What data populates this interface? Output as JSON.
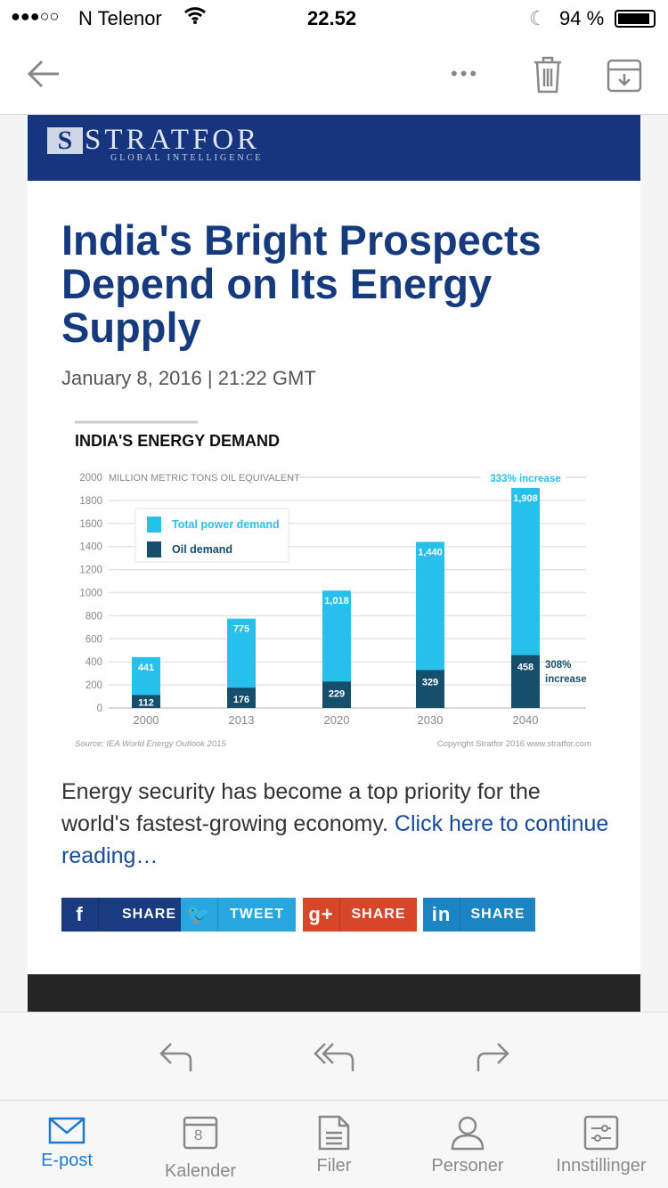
{
  "status": {
    "carrier": "N Telenor",
    "time": "22.52",
    "battery": "94 %"
  },
  "email": {
    "brand": {
      "name": "STRATFOR",
      "tagline": "GLOBAL INTELLIGENCE"
    },
    "title": "India's Bright Prospects Depend on Its Energy Supply",
    "date": "January 8, 2016 | 21:22 GMT",
    "body": "Energy security has become a top priority for the world's fastest-growing economy.",
    "link": "Click here to continue reading…",
    "share": [
      {
        "icon": "f",
        "label": "SHARE",
        "color": "#1a3b80"
      },
      {
        "icon": "🐦",
        "label": "TWEET",
        "color": "#27a6df"
      },
      {
        "icon": "g+",
        "label": "SHARE",
        "color": "#d8462a"
      },
      {
        "icon": "in",
        "label": "SHARE",
        "color": "#1a85c2"
      }
    ]
  },
  "tabs": [
    {
      "label": "E-post",
      "icon": "mail-icon"
    },
    {
      "label": "Kalender",
      "icon": "calendar-icon",
      "badge": "8"
    },
    {
      "label": "Filer",
      "icon": "file-icon"
    },
    {
      "label": "Personer",
      "icon": "person-icon"
    },
    {
      "label": "Innstillinger",
      "icon": "settings-icon"
    }
  ],
  "chart_data": {
    "type": "bar",
    "stacked": false,
    "title": "INDIA'S ENERGY DEMAND",
    "ylabel": "MILLION METRIC TONS OIL EQUIVALENT",
    "ylim": [
      0,
      2000
    ],
    "yticks": [
      0,
      200,
      400,
      600,
      800,
      1000,
      1200,
      1400,
      1600,
      1800,
      2000
    ],
    "categories": [
      "2000",
      "2013",
      "2020",
      "2030",
      "2040"
    ],
    "series": [
      {
        "name": "Total power demand",
        "color": "#27c0ec",
        "values": [
          441,
          775,
          1018,
          1440,
          1908
        ],
        "labels": [
          "441",
          "775",
          "1,018",
          "1,440",
          "1,908"
        ]
      },
      {
        "name": "Oil demand",
        "color": "#154f6b",
        "values": [
          112,
          176,
          229,
          329,
          458
        ],
        "labels": [
          "112",
          "176",
          "229",
          "329",
          "458"
        ]
      }
    ],
    "annotations": [
      "333% increase",
      "308%",
      "increase"
    ],
    "source": "Source: IEA World Energy Outlook 2015",
    "copyright": "Copyright Stratfor 2016   www.stratfor.com",
    "legend": "top-left"
  }
}
